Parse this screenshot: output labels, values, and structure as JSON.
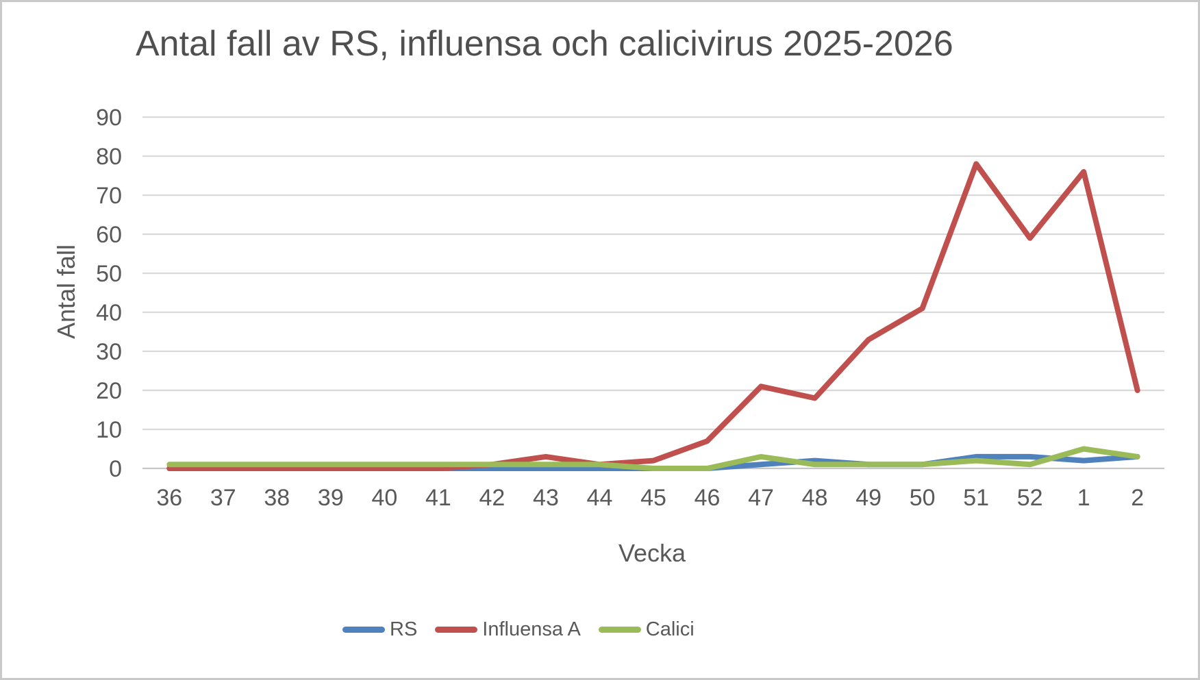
{
  "chart_data": {
    "type": "line",
    "title": "Antal fall av RS, influensa och calicivirus 2025-2026",
    "xlabel": "Vecka",
    "ylabel": "Antal fall",
    "ylim": [
      0,
      90
    ],
    "ytick_step": 10,
    "grid": true,
    "legend_position": "bottom",
    "categories": [
      "36",
      "37",
      "38",
      "39",
      "40",
      "41",
      "42",
      "43",
      "44",
      "45",
      "46",
      "47",
      "48",
      "49",
      "50",
      "51",
      "52",
      "1",
      "2"
    ],
    "series": [
      {
        "name": "RS",
        "color": "#4F81BD",
        "values": [
          0,
          0,
          0,
          0,
          0,
          0,
          0,
          0,
          0,
          0,
          0,
          1,
          2,
          1,
          1,
          3,
          3,
          2,
          3
        ]
      },
      {
        "name": "Influensa A",
        "color": "#C0504D",
        "values": [
          0,
          0,
          0,
          0,
          0,
          0,
          1,
          3,
          1,
          2,
          7,
          21,
          18,
          33,
          41,
          78,
          59,
          76,
          20
        ]
      },
      {
        "name": "Calici",
        "color": "#9BBB59",
        "values": [
          1,
          1,
          1,
          1,
          1,
          1,
          1,
          1,
          1,
          0,
          0,
          3,
          1,
          1,
          1,
          2,
          1,
          5,
          3
        ]
      }
    ],
    "grid_color": "#D9D9D9",
    "axis_line_color": "#C6C6C6",
    "text_color": "#595959",
    "background": "#FFFFFF",
    "border_color": "#C9C9C9"
  }
}
